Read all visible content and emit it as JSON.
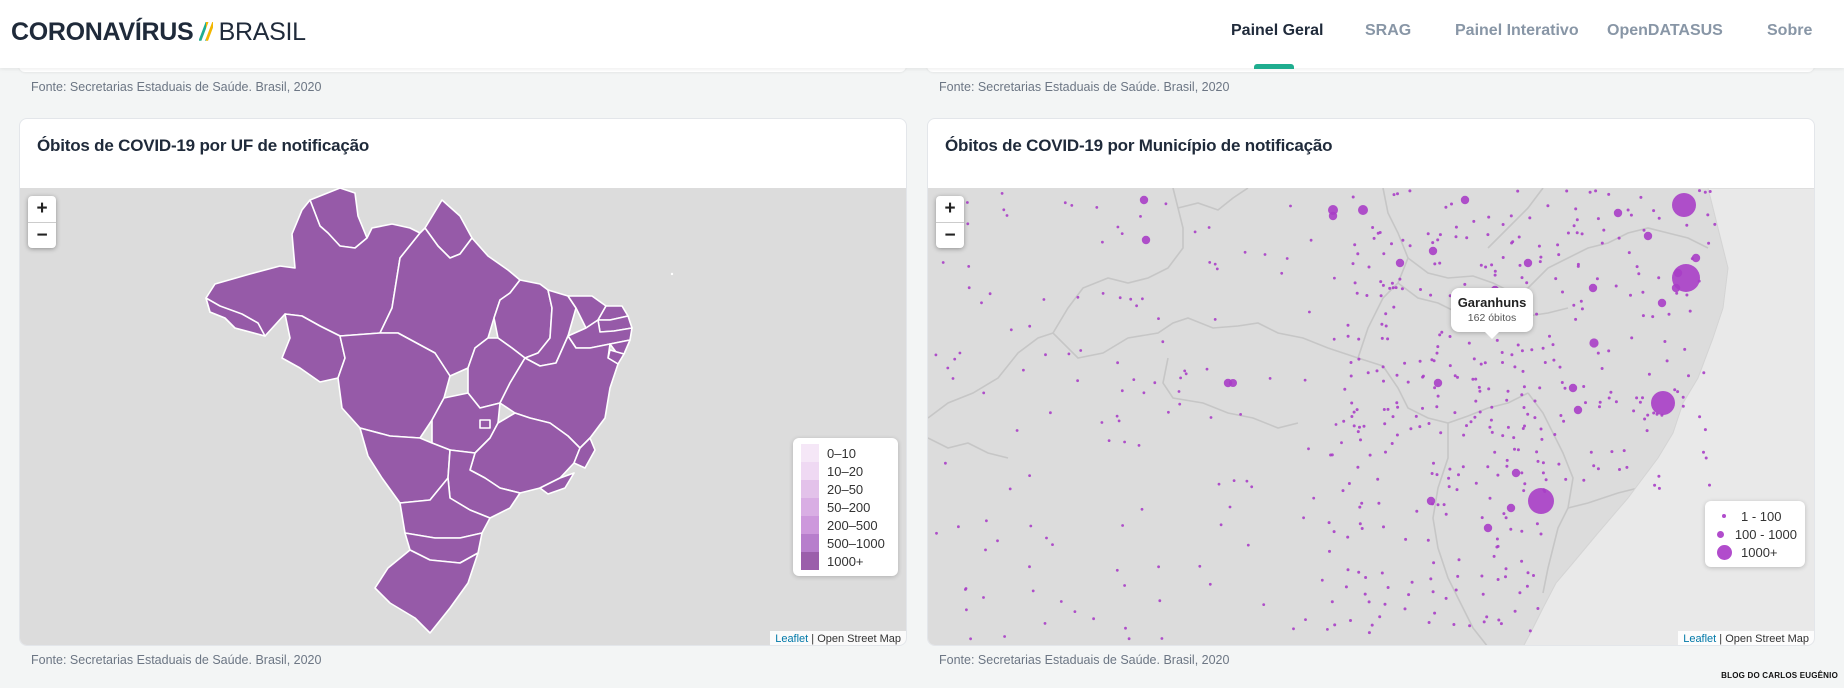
{
  "header": {
    "logo_bold": "CORONAVÍRUS",
    "logo_slash": "//",
    "logo_light": "BRASIL",
    "nav": [
      {
        "label": "Painel Geral",
        "active": true
      },
      {
        "label": "SRAG",
        "active": false
      },
      {
        "label": "Painel Interativo",
        "active": false
      },
      {
        "label": "OpenDATASUS",
        "active": false
      },
      {
        "label": "Sobre",
        "active": false
      }
    ]
  },
  "source_text": "Fonte: Secretarias Estaduais de Saúde. Brasil, 2020",
  "uf_card": {
    "title": "Óbitos de COVID-19 por UF de notificação",
    "zoom_in": "+",
    "zoom_out": "−",
    "legend": [
      "0–10",
      "10–20",
      "20–50",
      "50–200",
      "200–500",
      "500–1000",
      "1000+"
    ],
    "legend_colors": [
      "#f5e7f7",
      "#efd9f3",
      "#e3c2ea",
      "#d9aee4",
      "#cd98dc",
      "#b77ecc",
      "#9b5fab"
    ],
    "state_color": "#965aa8"
  },
  "mun_card": {
    "title": "Óbitos de COVID-19 por Município de notificação",
    "zoom_in": "+",
    "zoom_out": "−",
    "legend": [
      "1 - 100",
      "100 - 1000",
      "1000+"
    ],
    "tooltip": {
      "name": "Garanhuns",
      "value": "162 óbitos"
    },
    "dot_color": "#a93ec6"
  },
  "attribution": {
    "leaflet": "Leaflet",
    "sep": " | ",
    "osm": "Open Street Map"
  },
  "watermark": "BLOG DO CARLOS EUGÊNIO"
}
